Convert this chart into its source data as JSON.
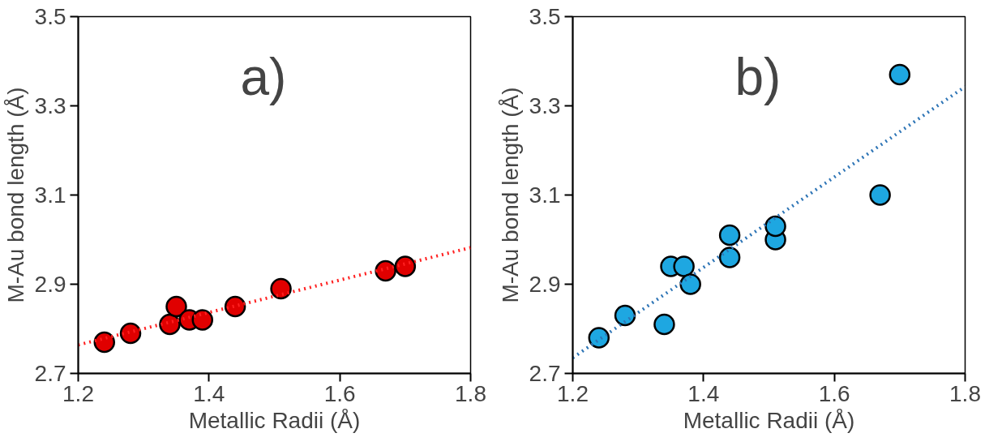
{
  "chart_data": [
    {
      "type": "scatter",
      "annotations": [
        "a)"
      ],
      "xlabel": "Metallic Radii (Å)",
      "ylabel": "M-Au bond length (Å)",
      "xlim": [
        1.2,
        1.8
      ],
      "ylim": [
        2.7,
        3.5
      ],
      "xticks": [
        1.2,
        1.4,
        1.6,
        1.8
      ],
      "yticks": [
        2.7,
        2.9,
        3.1,
        3.3,
        3.5
      ],
      "grid": false,
      "marker": "circle",
      "series": [
        {
          "color": "#e00000",
          "x": [
            1.24,
            1.28,
            1.34,
            1.35,
            1.37,
            1.39,
            1.44,
            1.51,
            1.67,
            1.7
          ],
          "values": [
            2.77,
            2.79,
            2.81,
            2.85,
            2.82,
            2.82,
            2.85,
            2.89,
            2.93,
            2.94
          ]
        },
        {
          "type": "line",
          "color": "#ff2020",
          "line_style": "dotted",
          "marker": "none",
          "x": [
            1.2,
            1.8
          ],
          "values": [
            2.764,
            2.982
          ]
        }
      ]
    },
    {
      "type": "scatter",
      "annotations": [
        "b)"
      ],
      "xlabel": "Metallic Radii (Å)",
      "ylabel": "M-Au bond length (Å)",
      "xlim": [
        1.2,
        1.8
      ],
      "ylim": [
        2.7,
        3.5
      ],
      "xticks": [
        1.2,
        1.4,
        1.6,
        1.8
      ],
      "yticks": [
        2.7,
        2.9,
        3.1,
        3.3,
        3.5
      ],
      "grid": false,
      "marker": "circle",
      "series": [
        {
          "color": "#1ea7e1",
          "x": [
            1.24,
            1.28,
            1.34,
            1.35,
            1.37,
            1.38,
            1.44,
            1.44,
            1.51,
            1.51,
            1.67,
            1.7
          ],
          "values": [
            2.78,
            2.83,
            2.81,
            2.94,
            2.94,
            2.9,
            3.01,
            2.96,
            3.0,
            3.03,
            3.1,
            3.37
          ]
        },
        {
          "type": "line",
          "color": "#2e75b6",
          "line_style": "dotted",
          "marker": "none",
          "x": [
            1.2,
            1.8
          ],
          "values": [
            2.735,
            3.343
          ]
        }
      ]
    }
  ]
}
